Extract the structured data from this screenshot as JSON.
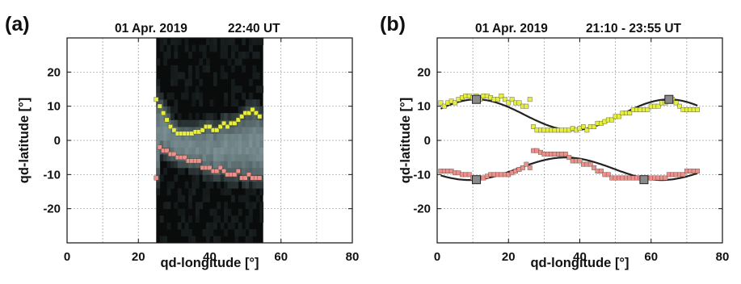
{
  "chart_data": [
    {
      "type": "heatmap",
      "panel_label": "(a)",
      "title_date": "01 Apr. 2019",
      "title_time": "22:40 UT",
      "xlabel": "qd-longitude [°]",
      "ylabel": "qd-latitude [°]",
      "xlim": [
        0,
        80
      ],
      "ylim": [
        -30,
        30
      ],
      "xticks": [
        0,
        20,
        40,
        60,
        80
      ],
      "yticks": [
        -20,
        -10,
        0,
        10,
        20
      ],
      "grid": true,
      "image_extent_x": [
        25,
        55
      ],
      "colors": {
        "north": "#e6ef3c",
        "south": "#ee8f8f"
      },
      "series": [
        {
          "values": [
            [
              25,
              12
            ],
            [
              26,
              10
            ],
            [
              27,
              8
            ],
            [
              28,
              6
            ],
            [
              29,
              4
            ],
            [
              30,
              3
            ],
            [
              31,
              2
            ],
            [
              32,
              2
            ],
            [
              33,
              2
            ],
            [
              34,
              2
            ],
            [
              35,
              2
            ],
            [
              36,
              2.5
            ],
            [
              37,
              2.5
            ],
            [
              38,
              3
            ],
            [
              39,
              4
            ],
            [
              40,
              4
            ],
            [
              41,
              3
            ],
            [
              42,
              3
            ],
            [
              43,
              4
            ],
            [
              44,
              5
            ],
            [
              45,
              4
            ],
            [
              46,
              5
            ],
            [
              47,
              5
            ],
            [
              48,
              6
            ],
            [
              49,
              7
            ],
            [
              50,
              8
            ],
            [
              51,
              8
            ],
            [
              52,
              9
            ],
            [
              53,
              8
            ],
            [
              54,
              7
            ]
          ]
        },
        {
          "values": [
            [
              25,
              -11
            ],
            [
              26,
              -2
            ],
            [
              27,
              -3
            ],
            [
              28,
              -3
            ],
            [
              29,
              -4
            ],
            [
              30,
              -4
            ],
            [
              31,
              -5
            ],
            [
              32,
              -5
            ],
            [
              33,
              -5
            ],
            [
              34,
              -6
            ],
            [
              35,
              -6
            ],
            [
              36,
              -6
            ],
            [
              37,
              -6
            ],
            [
              38,
              -8
            ],
            [
              39,
              -8
            ],
            [
              40,
              -8
            ],
            [
              41,
              -9
            ],
            [
              42,
              -9
            ],
            [
              43,
              -8
            ],
            [
              44,
              -9
            ],
            [
              45,
              -10
            ],
            [
              46,
              -10
            ],
            [
              47,
              -10
            ],
            [
              48,
              -9
            ],
            [
              49,
              -11
            ],
            [
              50,
              -11
            ],
            [
              51,
              -10
            ],
            [
              52,
              -11
            ],
            [
              53,
              -11
            ],
            [
              54,
              -11
            ]
          ]
        }
      ]
    },
    {
      "type": "scatter",
      "panel_label": "(b)",
      "title_date": "01 Apr. 2019",
      "title_time": "21:10 - 23:55 UT",
      "xlabel": "qd-longitude [°]",
      "ylabel": "qd-latitude [°]",
      "xlim": [
        0,
        80
      ],
      "ylim": [
        -30,
        30
      ],
      "xticks": [
        0,
        20,
        40,
        60,
        80
      ],
      "yticks": [
        -20,
        -10,
        0,
        10,
        20
      ],
      "grid": true,
      "colors": {
        "north": "#e6ef3c",
        "south": "#ee8f8f",
        "fit": "#222222",
        "marker": "#8a8a8a"
      },
      "series": [
        {
          "values": [
            [
              1,
              11
            ],
            [
              2,
              10
            ],
            [
              3,
              11
            ],
            [
              4,
              11.5
            ],
            [
              5,
              11
            ],
            [
              6,
              12
            ],
            [
              7,
              12.5
            ],
            [
              8,
              13
            ],
            [
              9,
              13
            ],
            [
              10,
              12.5
            ],
            [
              11,
              13
            ],
            [
              12,
              12
            ],
            [
              13,
              13
            ],
            [
              14,
              13
            ],
            [
              15,
              12.5
            ],
            [
              16,
              12
            ],
            [
              17,
              12
            ],
            [
              18,
              13
            ],
            [
              19,
              12
            ],
            [
              20,
              11
            ],
            [
              21,
              12
            ],
            [
              22,
              11
            ],
            [
              23,
              11
            ],
            [
              24,
              10
            ],
            [
              25,
              10
            ],
            [
              26,
              12
            ],
            [
              27,
              4
            ],
            [
              28,
              3
            ],
            [
              29,
              3
            ],
            [
              30,
              3
            ],
            [
              31,
              3
            ],
            [
              32,
              3
            ],
            [
              33,
              3
            ],
            [
              34,
              3
            ],
            [
              35,
              3
            ],
            [
              36,
              3
            ],
            [
              37,
              3
            ],
            [
              38,
              3.5
            ],
            [
              39,
              3
            ],
            [
              40,
              3.5
            ],
            [
              41,
              4
            ],
            [
              42,
              3
            ],
            [
              43,
              4
            ],
            [
              44,
              4
            ],
            [
              45,
              5
            ],
            [
              46,
              5
            ],
            [
              47,
              5.5
            ],
            [
              48,
              6
            ],
            [
              49,
              6
            ],
            [
              50,
              7
            ],
            [
              51,
              7
            ],
            [
              52,
              8
            ],
            [
              53,
              8
            ],
            [
              54,
              8
            ],
            [
              55,
              9
            ],
            [
              56,
              9
            ],
            [
              57,
              9
            ],
            [
              58,
              9
            ],
            [
              59,
              9
            ],
            [
              60,
              10
            ],
            [
              61,
              10
            ],
            [
              62,
              10
            ],
            [
              63,
              11
            ],
            [
              64,
              11
            ],
            [
              65,
              12
            ],
            [
              66,
              12
            ],
            [
              67,
              11
            ],
            [
              68,
              10
            ],
            [
              69,
              9
            ],
            [
              70,
              9
            ],
            [
              71,
              9
            ],
            [
              72,
              9
            ],
            [
              73,
              9
            ]
          ]
        },
        {
          "values": [
            [
              1,
              -9
            ],
            [
              2,
              -9
            ],
            [
              3,
              -9
            ],
            [
              4,
              -9
            ],
            [
              5,
              -9.5
            ],
            [
              6,
              -9.5
            ],
            [
              7,
              -10
            ],
            [
              8,
              -10
            ],
            [
              9,
              -10
            ],
            [
              10,
              -11
            ],
            [
              11,
              -11
            ],
            [
              12,
              -11
            ],
            [
              13,
              -11
            ],
            [
              14,
              -10.5
            ],
            [
              15,
              -10
            ],
            [
              16,
              -10
            ],
            [
              17,
              -10
            ],
            [
              18,
              -10
            ],
            [
              19,
              -10
            ],
            [
              20,
              -10
            ],
            [
              21,
              -9.5
            ],
            [
              22,
              -9
            ],
            [
              23,
              -8.5
            ],
            [
              24,
              -8
            ],
            [
              25,
              -7
            ],
            [
              26,
              -8
            ],
            [
              27,
              -3
            ],
            [
              28,
              -3
            ],
            [
              29,
              -3.5
            ],
            [
              30,
              -4
            ],
            [
              31,
              -4
            ],
            [
              32,
              -4
            ],
            [
              33,
              -4
            ],
            [
              34,
              -4
            ],
            [
              35,
              -4
            ],
            [
              36,
              -4
            ],
            [
              37,
              -5
            ],
            [
              38,
              -6
            ],
            [
              39,
              -6
            ],
            [
              40,
              -6
            ],
            [
              41,
              -7
            ],
            [
              42,
              -7
            ],
            [
              43,
              -7
            ],
            [
              44,
              -8
            ],
            [
              45,
              -9
            ],
            [
              46,
              -9
            ],
            [
              47,
              -10
            ],
            [
              48,
              -10
            ],
            [
              49,
              -11
            ],
            [
              50,
              -11
            ],
            [
              51,
              -11
            ],
            [
              52,
              -11
            ],
            [
              53,
              -11
            ],
            [
              54,
              -11
            ],
            [
              55,
              -11
            ],
            [
              56,
              -11
            ],
            [
              57,
              -11
            ],
            [
              58,
              -11
            ],
            [
              59,
              -11
            ],
            [
              60,
              -11
            ],
            [
              61,
              -11
            ],
            [
              62,
              -11
            ],
            [
              63,
              -11
            ],
            [
              64,
              -11
            ],
            [
              65,
              -10
            ],
            [
              66,
              -10
            ],
            [
              67,
              -10
            ],
            [
              68,
              -10
            ],
            [
              69,
              -10
            ],
            [
              70,
              -9
            ],
            [
              71,
              -9
            ],
            [
              72,
              -9
            ],
            [
              73,
              -9
            ]
          ]
        }
      ],
      "fit_markers": [
        [
          11,
          12
        ],
        [
          65,
          12
        ],
        [
          11,
          -11.5
        ],
        [
          58,
          -11.5
        ]
      ]
    }
  ]
}
